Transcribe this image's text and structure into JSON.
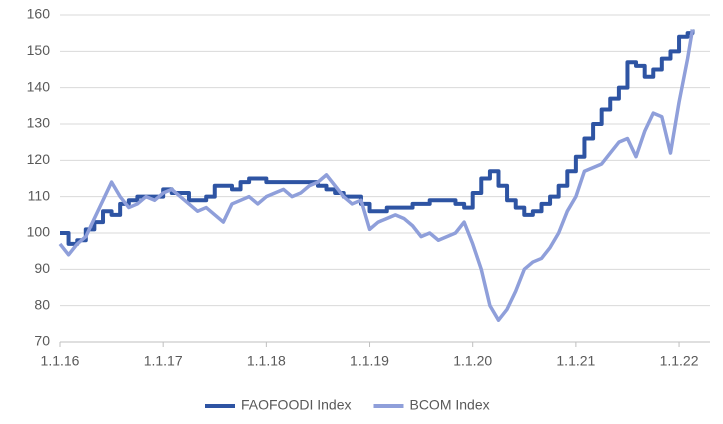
{
  "chart_data": {
    "type": "line",
    "x": [
      2016,
      2016.083,
      2016.167,
      2016.25,
      2016.333,
      2016.417,
      2016.5,
      2016.583,
      2016.667,
      2016.75,
      2016.833,
      2016.917,
      2017,
      2017.083,
      2017.167,
      2017.25,
      2017.333,
      2017.417,
      2017.5,
      2017.583,
      2017.667,
      2017.75,
      2017.833,
      2017.917,
      2018,
      2018.083,
      2018.167,
      2018.25,
      2018.333,
      2018.417,
      2018.5,
      2018.583,
      2018.667,
      2018.75,
      2018.833,
      2018.917,
      2019,
      2019.083,
      2019.167,
      2019.25,
      2019.333,
      2019.417,
      2019.5,
      2019.583,
      2019.667,
      2019.75,
      2019.833,
      2019.917,
      2020,
      2020.083,
      2020.167,
      2020.25,
      2020.333,
      2020.417,
      2020.5,
      2020.583,
      2020.667,
      2020.75,
      2020.833,
      2020.917,
      2021,
      2021.083,
      2021.167,
      2021.25,
      2021.333,
      2021.417,
      2021.5,
      2021.583,
      2021.667,
      2021.75,
      2021.833,
      2021.917,
      2022,
      2022.083,
      2022.13
    ],
    "series": [
      {
        "name": "FAOFOODI Index",
        "color": "#2e54a3",
        "step": true,
        "values": [
          100,
          97,
          98,
          101,
          103,
          106,
          105,
          108,
          109,
          110,
          110,
          110,
          112,
          111,
          111,
          109,
          109,
          110,
          113,
          113,
          112,
          114,
          115,
          115,
          114,
          114,
          114,
          114,
          114,
          114,
          113,
          112,
          111,
          110,
          110,
          108,
          106,
          106,
          107,
          107,
          107,
          108,
          108,
          109,
          109,
          109,
          108,
          107,
          111,
          115,
          117,
          113,
          109,
          107,
          105,
          106,
          108,
          110,
          113,
          117,
          121,
          126,
          130,
          134,
          137,
          140,
          147,
          146,
          143,
          145,
          148,
          150,
          154,
          155,
          156
        ]
      },
      {
        "name": "BCOM Index",
        "color": "#8f9fda",
        "step": false,
        "values": [
          97,
          94,
          97,
          99,
          104,
          109,
          114,
          110,
          107,
          108,
          110,
          109,
          111,
          112,
          110,
          108,
          106,
          107,
          105,
          103,
          108,
          109,
          110,
          108,
          110,
          111,
          112,
          110,
          111,
          113,
          114,
          116,
          113,
          110,
          108,
          109,
          101,
          103,
          104,
          105,
          104,
          102,
          99,
          100,
          98,
          99,
          100,
          103,
          97,
          90,
          80,
          76,
          79,
          84,
          90,
          92,
          93,
          96,
          100,
          106,
          110,
          117,
          118,
          119,
          122,
          125,
          126,
          121,
          128,
          133,
          132,
          122,
          136,
          148,
          156
        ]
      }
    ],
    "xlim": [
      2016,
      2022.3
    ],
    "xticks": [
      {
        "value": 2016,
        "label": "1.1.16"
      },
      {
        "value": 2017,
        "label": "1.1.17"
      },
      {
        "value": 2018,
        "label": "1.1.18"
      },
      {
        "value": 2019,
        "label": "1.1.19"
      },
      {
        "value": 2020,
        "label": "1.1.20"
      },
      {
        "value": 2021,
        "label": "1.1.21"
      },
      {
        "value": 2022,
        "label": "1.1.22"
      }
    ],
    "ylim": [
      70,
      160
    ],
    "yticks": [
      70,
      80,
      90,
      100,
      110,
      120,
      130,
      140,
      150,
      160
    ],
    "grid": true,
    "legend": "bottom"
  }
}
